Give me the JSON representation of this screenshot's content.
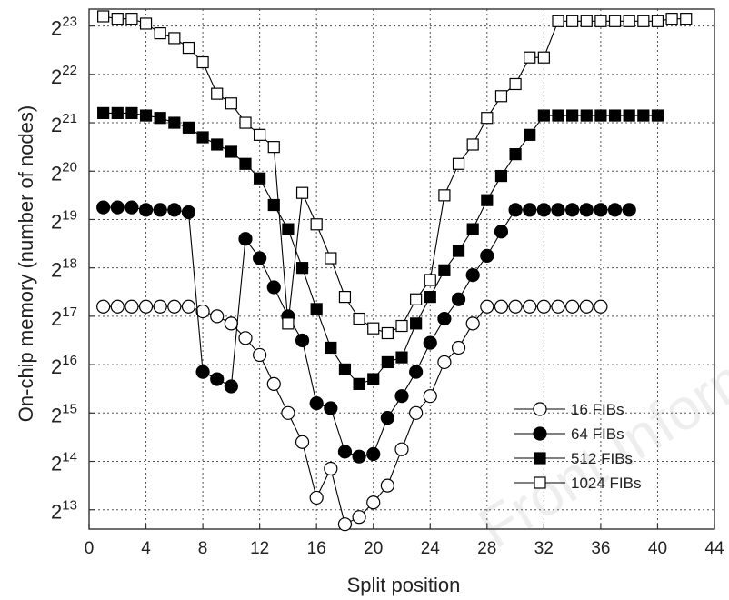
{
  "chart_data": {
    "type": "line",
    "xlabel": "Split position",
    "ylabel": "On-chip memory (number of nodes)",
    "xlim": [
      0,
      44
    ],
    "ylim_log2": [
      12.6,
      23.35
    ],
    "x_ticks": [
      0,
      4,
      8,
      12,
      16,
      20,
      24,
      28,
      32,
      36,
      40,
      44
    ],
    "y_ticks": [
      {
        "base": "2",
        "exp": "13",
        "log2": 13
      },
      {
        "base": "2",
        "exp": "14",
        "log2": 14
      },
      {
        "base": "2",
        "exp": "15",
        "log2": 15
      },
      {
        "base": "2",
        "exp": "16",
        "log2": 16
      },
      {
        "base": "2",
        "exp": "17",
        "log2": 17
      },
      {
        "base": "2",
        "exp": "18",
        "log2": 18
      },
      {
        "base": "2",
        "exp": "19",
        "log2": 19
      },
      {
        "base": "2",
        "exp": "20",
        "log2": 20
      },
      {
        "base": "2",
        "exp": "21",
        "log2": 21
      },
      {
        "base": "2",
        "exp": "22",
        "log2": 22
      },
      {
        "base": "2",
        "exp": "23",
        "log2": 23
      }
    ],
    "grid": true,
    "grid_style": "dotted",
    "legend_position": "bottom-right",
    "series": [
      {
        "name": "16 FIBs",
        "marker": "circle",
        "fill": "open",
        "x": [
          1,
          2,
          3,
          4,
          5,
          6,
          7,
          8,
          9,
          10,
          11,
          12,
          13,
          14,
          15,
          16,
          17,
          18,
          19,
          20,
          21,
          22,
          23,
          24,
          25,
          26,
          27,
          28,
          29,
          30,
          31,
          32,
          33,
          34,
          35,
          36
        ],
        "y_log2": [
          17.2,
          17.2,
          17.2,
          17.2,
          17.2,
          17.2,
          17.2,
          17.1,
          17.0,
          16.85,
          16.55,
          16.2,
          15.6,
          15.0,
          14.4,
          13.25,
          13.85,
          12.7,
          12.85,
          13.15,
          13.5,
          14.25,
          15.0,
          15.35,
          16.05,
          16.35,
          16.85,
          17.2,
          17.2,
          17.2,
          17.2,
          17.2,
          17.2,
          17.2,
          17.2,
          17.2
        ],
        "y_unit": "log2(nodes)"
      },
      {
        "name": "64 FIBs",
        "marker": "circle",
        "fill": "solid",
        "x": [
          1,
          2,
          3,
          4,
          5,
          6,
          7,
          8,
          9,
          10,
          11,
          12,
          13,
          14,
          15,
          16,
          17,
          18,
          19,
          20,
          21,
          22,
          23,
          24,
          25,
          26,
          27,
          28,
          29,
          30,
          31,
          32,
          33,
          34,
          35,
          36,
          37,
          38
        ],
        "y_log2": [
          19.25,
          19.25,
          19.25,
          19.2,
          19.2,
          19.2,
          19.15,
          15.85,
          15.7,
          15.55,
          18.6,
          18.2,
          17.6,
          17.0,
          16.5,
          15.2,
          15.1,
          14.2,
          14.1,
          14.15,
          14.9,
          15.35,
          15.85,
          16.45,
          16.95,
          17.35,
          17.85,
          18.25,
          18.75,
          19.2,
          19.2,
          19.2,
          19.2,
          19.2,
          19.2,
          19.2,
          19.2,
          19.2
        ],
        "y_unit": "log2(nodes)"
      },
      {
        "name": "512 FIBs",
        "marker": "square",
        "fill": "solid",
        "x": [
          1,
          2,
          3,
          4,
          5,
          6,
          7,
          8,
          9,
          10,
          11,
          12,
          13,
          14,
          15,
          16,
          17,
          18,
          19,
          20,
          21,
          22,
          23,
          24,
          25,
          26,
          27,
          28,
          29,
          30,
          31,
          32,
          33,
          34,
          35,
          36,
          37,
          38,
          39,
          40
        ],
        "y_log2": [
          21.2,
          21.2,
          21.2,
          21.15,
          21.1,
          21.0,
          20.9,
          20.7,
          20.55,
          20.4,
          20.15,
          19.85,
          19.3,
          18.8,
          18.0,
          17.15,
          16.35,
          15.9,
          15.6,
          15.7,
          16.05,
          16.15,
          16.85,
          17.4,
          17.95,
          18.35,
          18.8,
          19.4,
          19.9,
          20.35,
          20.75,
          21.15,
          21.15,
          21.15,
          21.15,
          21.15,
          21.15,
          21.15,
          21.15,
          21.15
        ],
        "y_unit": "log2(nodes)"
      },
      {
        "name": "1024 FIBs",
        "marker": "square",
        "fill": "open",
        "x": [
          1,
          2,
          3,
          4,
          5,
          6,
          7,
          8,
          9,
          10,
          11,
          12,
          13,
          14,
          15,
          16,
          17,
          18,
          19,
          20,
          21,
          22,
          23,
          24,
          25,
          26,
          27,
          28,
          29,
          30,
          31,
          32,
          33,
          34,
          35,
          36,
          37,
          38,
          39,
          40,
          41,
          42
        ],
        "y_log2": [
          23.2,
          23.15,
          23.15,
          23.05,
          22.85,
          22.75,
          22.55,
          22.25,
          21.6,
          21.4,
          21.0,
          20.75,
          20.5,
          16.85,
          19.55,
          18.9,
          18.2,
          17.4,
          16.95,
          16.75,
          16.65,
          16.8,
          17.35,
          17.75,
          19.5,
          20.15,
          20.55,
          21.1,
          21.55,
          21.8,
          22.35,
          22.35,
          23.1,
          23.1,
          23.1,
          23.1,
          23.1,
          23.1,
          23.1,
          23.1,
          23.15,
          23.15
        ],
        "y_unit": "log2(nodes)"
      }
    ]
  },
  "watermark": "Front Inform Te"
}
